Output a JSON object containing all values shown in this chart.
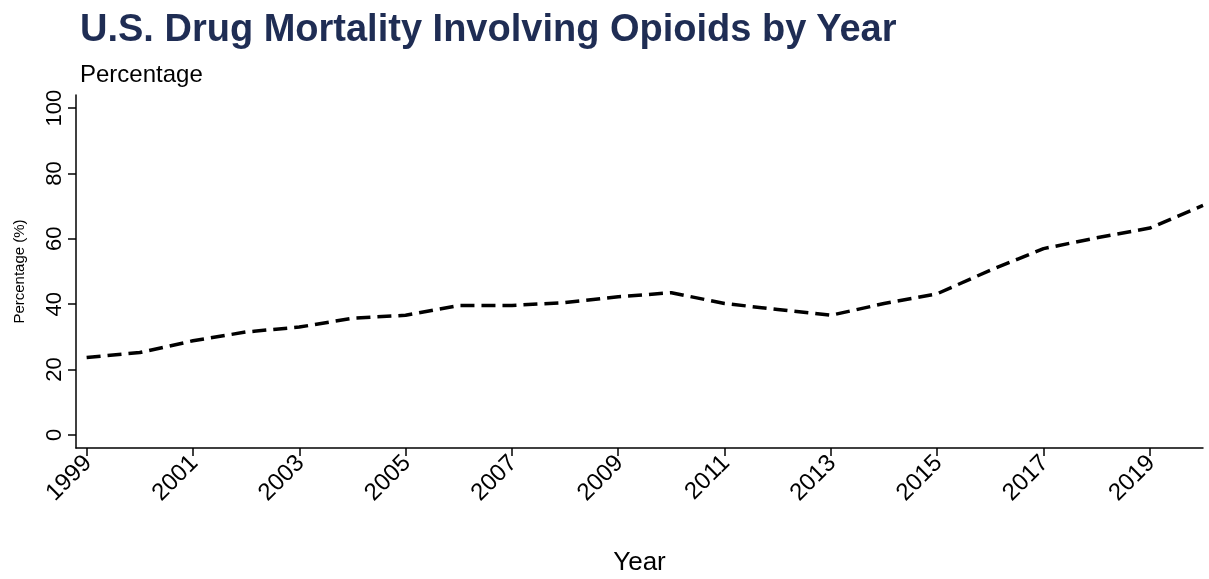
{
  "chart_data": {
    "type": "line",
    "title": "U.S. Drug Mortality Involving Opioids by Year",
    "subtitle": "Percentage",
    "xlabel": "Year",
    "ylabel": "Percentage (%)",
    "x": [
      1999,
      2000,
      2001,
      2002,
      2003,
      2004,
      2005,
      2006,
      2007,
      2008,
      2009,
      2010,
      2011,
      2012,
      2013,
      2014,
      2015,
      2016,
      2017,
      2018,
      2019,
      2020
    ],
    "series": [
      {
        "color": "#000000",
        "values": [
          23.7,
          25.2,
          28.8,
          31.5,
          33,
          35.7,
          36.6,
          39.6,
          39.6,
          40.5,
          42.3,
          43.5,
          40.2,
          38.4,
          36.6,
          40.2,
          43.2,
          50.4,
          57,
          60.3,
          63.3,
          70.2
        ]
      }
    ],
    "xlim": [
      1998.8,
      2020
    ],
    "xticks": [
      1999,
      2001,
      2003,
      2005,
      2007,
      2009,
      2011,
      2013,
      2015,
      2017,
      2019
    ],
    "ylim": [
      -4,
      104
    ],
    "yticks": [
      0,
      20,
      40,
      60,
      80,
      100
    ],
    "marker": "none",
    "line_style": "dashed"
  }
}
